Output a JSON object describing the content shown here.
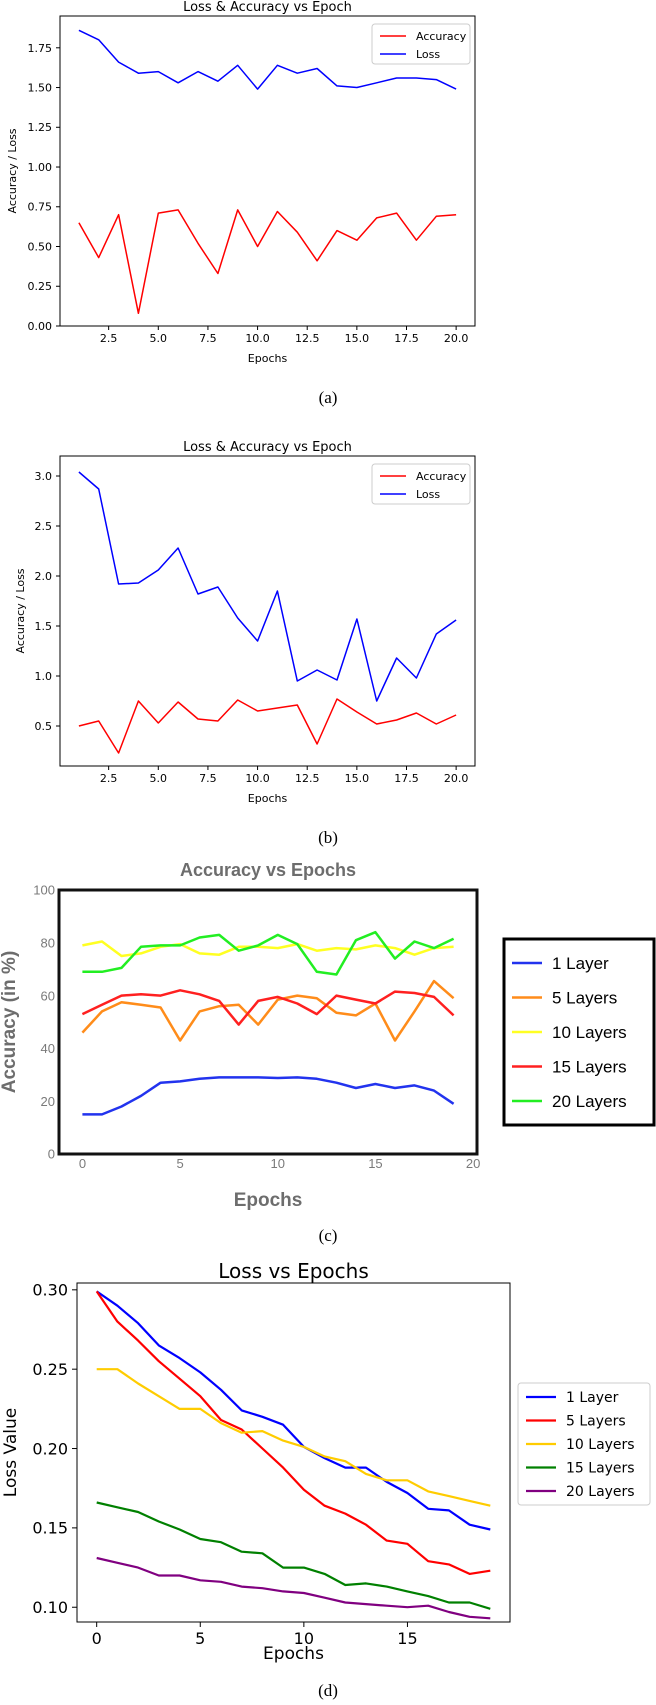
{
  "captions": [
    "(a)",
    "(b)",
    "(c)",
    "(d)"
  ],
  "colors": {
    "accuracy": "#ff0000",
    "loss": "#0000ff"
  },
  "chart_data": [
    {
      "type": "line",
      "title": "Loss & Accuracy vs Epoch",
      "xlabel": "Epochs",
      "ylabel": "Accuracy / Loss",
      "xlim": [
        0.05,
        20.95
      ],
      "ylim": [
        0,
        1.95
      ],
      "xticks": [
        2.5,
        5.0,
        7.5,
        10.0,
        12.5,
        15.0,
        17.5,
        20.0
      ],
      "xtick_labels": [
        "2.5",
        "5.0",
        "7.5",
        "10.0",
        "12.5",
        "15.0",
        "17.5",
        "20.0"
      ],
      "yticks": [
        0,
        0.25,
        0.5,
        0.75,
        1.0,
        1.25,
        1.5,
        1.75
      ],
      "ytick_labels": [
        "0.00",
        "0.25",
        "0.50",
        "0.75",
        "1.00",
        "1.25",
        "1.50",
        "1.75"
      ],
      "legend_position": "top-right",
      "x": [
        1,
        2,
        3,
        4,
        5,
        6,
        7,
        8,
        9,
        10,
        11,
        12,
        13,
        14,
        15,
        16,
        17,
        18,
        19,
        20
      ],
      "series": [
        {
          "name": "Accuracy",
          "color": "#ff0000",
          "values": [
            0.65,
            0.43,
            0.7,
            0.08,
            0.71,
            0.73,
            0.52,
            0.33,
            0.73,
            0.5,
            0.72,
            0.59,
            0.41,
            0.6,
            0.54,
            0.68,
            0.71,
            0.54,
            0.69,
            0.7
          ]
        },
        {
          "name": "Loss",
          "color": "#0000ff",
          "values": [
            1.86,
            1.8,
            1.66,
            1.59,
            1.6,
            1.53,
            1.6,
            1.54,
            1.64,
            1.49,
            1.64,
            1.59,
            1.62,
            1.51,
            1.5,
            1.53,
            1.56,
            1.56,
            1.55,
            1.49
          ]
        }
      ]
    },
    {
      "type": "line",
      "title": "Loss & Accuracy vs Epoch",
      "xlabel": "Epochs",
      "ylabel": "Accuracy / Loss",
      "xlim": [
        0.05,
        20.95
      ],
      "ylim": [
        0.1,
        3.2
      ],
      "xticks": [
        2.5,
        5.0,
        7.5,
        10.0,
        12.5,
        15.0,
        17.5,
        20.0
      ],
      "xtick_labels": [
        "2.5",
        "5.0",
        "7.5",
        "10.0",
        "12.5",
        "15.0",
        "17.5",
        "20.0"
      ],
      "yticks": [
        0.5,
        1.0,
        1.5,
        2.0,
        2.5,
        3.0
      ],
      "ytick_labels": [
        "0.5",
        "1.0",
        "1.5",
        "2.0",
        "2.5",
        "3.0"
      ],
      "legend_position": "top-right",
      "x": [
        1,
        2,
        3,
        4,
        5,
        6,
        7,
        8,
        9,
        10,
        11,
        12,
        13,
        14,
        15,
        16,
        17,
        18,
        19,
        20
      ],
      "series": [
        {
          "name": "Accuracy",
          "color": "#ff0000",
          "values": [
            0.5,
            0.55,
            0.23,
            0.75,
            0.53,
            0.74,
            0.57,
            0.55,
            0.76,
            0.65,
            0.68,
            0.71,
            0.32,
            0.77,
            0.64,
            0.52,
            0.56,
            0.63,
            0.52,
            0.61
          ]
        },
        {
          "name": "Loss",
          "color": "#0000ff",
          "values": [
            3.04,
            2.87,
            1.92,
            1.93,
            2.06,
            2.28,
            1.82,
            1.89,
            1.58,
            1.35,
            1.85,
            0.95,
            1.06,
            0.96,
            1.57,
            0.75,
            1.18,
            0.98,
            1.42,
            1.56
          ]
        }
      ]
    },
    {
      "type": "line",
      "title": "Accuracy vs Epochs",
      "xlabel": "Epochs",
      "ylabel": "Accuracy (in %)",
      "xlim": [
        -1.2,
        20.2
      ],
      "ylim": [
        0,
        100
      ],
      "xticks": [
        0,
        5,
        10,
        15,
        20
      ],
      "xtick_labels": [
        "0",
        "5",
        "10",
        "15",
        "20"
      ],
      "yticks": [
        0,
        20,
        40,
        60,
        80,
        100
      ],
      "ytick_labels": [
        "0",
        "20",
        "40",
        "60",
        "80",
        "100"
      ],
      "legend_position": "right-outside",
      "x": [
        0,
        1,
        2,
        3,
        4,
        5,
        6,
        7,
        8,
        9,
        10,
        11,
        12,
        13,
        14,
        15,
        16,
        17,
        18,
        19
      ],
      "series": [
        {
          "name": "1 Layer",
          "color": "#2233ee",
          "values": [
            15,
            15,
            18,
            22,
            27,
            27.5,
            28.5,
            29,
            29,
            29,
            28.8,
            29,
            28.5,
            27,
            25,
            26.5,
            25,
            26,
            24,
            19
          ]
        },
        {
          "name": "5 Layers",
          "color": "#ff8c1a",
          "values": [
            46,
            54,
            57.5,
            56.5,
            55.5,
            43,
            54,
            56,
            56.5,
            49,
            58.5,
            60,
            59,
            53.5,
            52.5,
            57,
            43,
            54,
            65.5,
            59
          ]
        },
        {
          "name": "10 Layers",
          "color": "#ffff22",
          "values": [
            79,
            80.5,
            75,
            76,
            78.5,
            79.5,
            76,
            75.5,
            78.5,
            78.5,
            78,
            79.5,
            77,
            78,
            77.5,
            79,
            78,
            75.5,
            78,
            78.5
          ]
        },
        {
          "name": "15 Layers",
          "color": "#ff2020",
          "values": [
            53,
            56.5,
            60,
            60.5,
            60,
            62,
            60.5,
            58,
            49,
            58,
            59.5,
            57,
            53,
            60,
            58.5,
            57,
            61.5,
            61,
            59.5,
            52.5
          ]
        },
        {
          "name": "20 Layers",
          "color": "#22ee22",
          "values": [
            69,
            69,
            70.5,
            78.5,
            79,
            79,
            82,
            83,
            77,
            79,
            83,
            79.5,
            69,
            68,
            81,
            84,
            74,
            80.5,
            78,
            81.5
          ]
        }
      ]
    },
    {
      "type": "line",
      "title": "Loss vs Epochs",
      "xlabel": "Epochs",
      "ylabel": "Loss Value",
      "xlim": [
        -0.95,
        19.95
      ],
      "ylim": [
        0.0907,
        0.3043
      ],
      "xticks": [
        0,
        5,
        10,
        15
      ],
      "xtick_labels": [
        "0",
        "5",
        "10",
        "15"
      ],
      "yticks": [
        0.1,
        0.15,
        0.2,
        0.25,
        0.3
      ],
      "ytick_labels": [
        "0.10",
        "0.15",
        "0.20",
        "0.25",
        "0.30"
      ],
      "legend_position": "right-outside",
      "x": [
        0,
        1,
        2,
        3,
        4,
        5,
        6,
        7,
        8,
        9,
        10,
        11,
        12,
        13,
        14,
        15,
        16,
        17,
        18,
        19
      ],
      "series": [
        {
          "name": "1 Layer",
          "color": "#0000ff",
          "values": [
            0.299,
            0.29,
            0.279,
            0.265,
            0.257,
            0.248,
            0.237,
            0.224,
            0.22,
            0.215,
            0.201,
            0.194,
            0.188,
            0.188,
            0.179,
            0.172,
            0.162,
            0.161,
            0.152,
            0.149
          ]
        },
        {
          "name": "5 Layers",
          "color": "#ff0000",
          "values": [
            0.299,
            0.28,
            0.268,
            0.255,
            0.244,
            0.233,
            0.218,
            0.212,
            0.2,
            0.188,
            0.174,
            0.164,
            0.159,
            0.152,
            0.142,
            0.14,
            0.129,
            0.127,
            0.121,
            0.123
          ]
        },
        {
          "name": "10 Layers",
          "color": "#ffcc00",
          "values": [
            0.25,
            0.25,
            0.241,
            0.233,
            0.225,
            0.225,
            0.216,
            0.21,
            0.211,
            0.205,
            0.201,
            0.195,
            0.192,
            0.184,
            0.18,
            0.18,
            0.173,
            0.17,
            0.167,
            0.164
          ]
        },
        {
          "name": "15 Layers",
          "color": "#008000",
          "values": [
            0.166,
            0.163,
            0.16,
            0.154,
            0.149,
            0.143,
            0.141,
            0.135,
            0.134,
            0.125,
            0.125,
            0.121,
            0.114,
            0.115,
            0.113,
            0.11,
            0.107,
            0.103,
            0.103,
            0.099
          ]
        },
        {
          "name": "20 Layers",
          "color": "#800080",
          "values": [
            0.131,
            0.128,
            0.125,
            0.12,
            0.12,
            0.117,
            0.116,
            0.113,
            0.112,
            0.11,
            0.109,
            0.106,
            0.103,
            0.102,
            0.101,
            0.1,
            0.101,
            0.097,
            0.094,
            0.093
          ]
        }
      ]
    }
  ]
}
